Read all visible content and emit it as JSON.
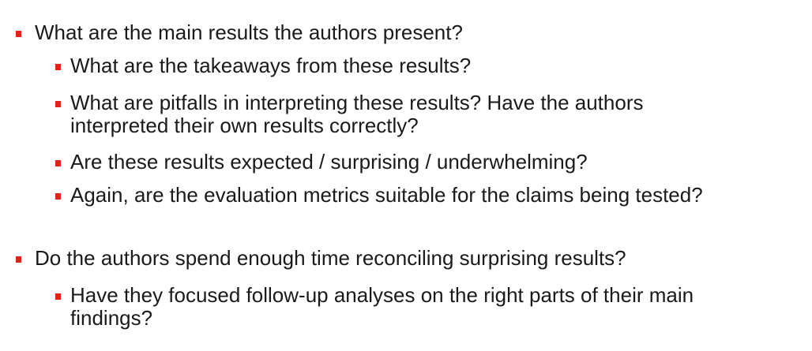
{
  "bullet_color": "#e2231a",
  "items": [
    {
      "text": "What are the main results the authors present?",
      "children": [
        {
          "lines": [
            "What are the takeaways from these results?"
          ]
        },
        {
          "lines": [
            "What are pitfalls in interpreting these results? Have the authors",
            "interpreted their own results correctly?"
          ]
        },
        {
          "lines": [
            "Are these results expected / surprising / underwhelming?"
          ]
        },
        {
          "lines": [
            "Again, are the evaluation metrics suitable for the claims being tested?"
          ]
        }
      ]
    },
    {
      "text": "Do the authors spend enough time reconciling surprising results?",
      "children": [
        {
          "lines": [
            "Have they focused follow-up analyses on the right parts of their main",
            "findings?"
          ]
        }
      ]
    }
  ]
}
